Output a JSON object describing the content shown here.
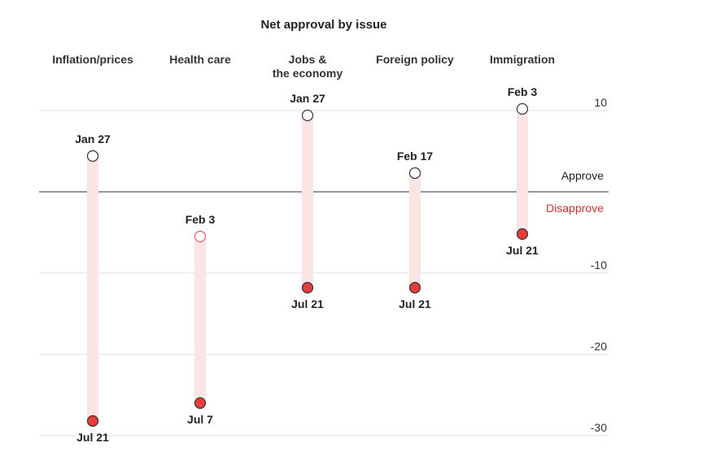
{
  "chart_data": {
    "type": "dumbbell",
    "title": "Net approval by issue",
    "ylim": [
      -31,
      11
    ],
    "yticks": [
      10,
      -10,
      -20,
      -30
    ],
    "ytick_labels": [
      "10",
      "-10",
      "-20",
      "-30"
    ],
    "zero_labels": {
      "above": "Approve",
      "below": "Disapprove"
    },
    "colors": {
      "start": "#ffffff",
      "end": "#e83b3b",
      "range": "#fbe4e4",
      "disapprove": "#d22d2d",
      "grid": "#dddddd",
      "zero": "#777777"
    },
    "categories": [
      {
        "name": [
          "Inflation/prices"
        ],
        "start": {
          "label": "Jan 27",
          "value": 4.4
        },
        "end": {
          "label": "Jul 21",
          "value": -28.2
        }
      },
      {
        "name": [
          "Health care"
        ],
        "start": {
          "label": "Feb 3",
          "value": -5.5
        },
        "end": {
          "label": "Jul 7",
          "value": -26
        }
      },
      {
        "name": [
          "Jobs &",
          "the economy"
        ],
        "start": {
          "label": "Jan 27",
          "value": 9.4
        },
        "end": {
          "label": "Jul 21",
          "value": -11.8
        }
      },
      {
        "name": [
          "Foreign policy"
        ],
        "start": {
          "label": "Feb 17",
          "value": 2.3
        },
        "end": {
          "label": "Jul 21",
          "value": -11.8
        }
      },
      {
        "name": [
          "Immigration"
        ],
        "start": {
          "label": "Feb 3",
          "value": 10.2
        },
        "end": {
          "label": "Jul 21",
          "value": -5.2
        }
      }
    ]
  }
}
